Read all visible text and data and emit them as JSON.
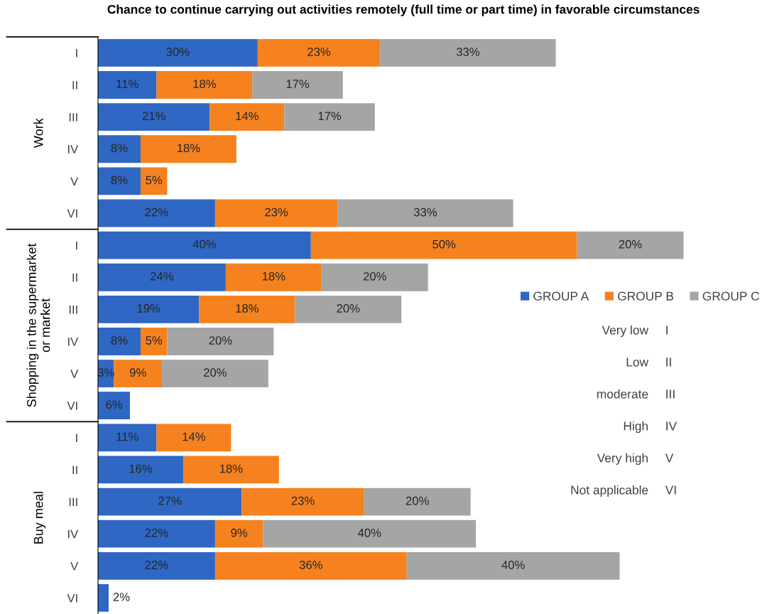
{
  "chart_data": {
    "type": "bar",
    "orientation": "horizontal",
    "stacked": true,
    "legend": "right",
    "grid": false,
    "title": "Chance to continue carrying out activities remotely (full time or part time) in favorable circumstances",
    "categories": [
      "I",
      "II",
      "III",
      "IV",
      "V",
      "VI",
      "I",
      "II",
      "III",
      "IV",
      "V",
      "VI",
      "I",
      "II",
      "III",
      "IV",
      "V",
      "VI"
    ],
    "series": [
      {
        "name": "GROUP A",
        "color": "#2e67c4",
        "values": [
          30,
          11,
          21,
          8,
          8,
          22,
          40,
          24,
          19,
          8,
          3,
          6,
          11,
          16,
          27,
          22,
          22,
          2
        ],
        "value_labels": [
          "30%",
          "11%",
          "21%",
          "8%",
          "8%",
          "22%",
          "40%",
          "24%",
          "19%",
          "8%",
          "3%",
          "6%",
          "11%",
          "16%",
          "27%",
          "22%",
          "22%",
          "2%"
        ]
      },
      {
        "name": "GROUP B",
        "color": "#f5821f",
        "values": [
          23,
          18,
          14,
          18,
          5,
          23,
          50,
          18,
          18,
          5,
          9,
          null,
          14,
          18,
          23,
          9,
          36,
          null
        ],
        "value_labels": [
          "23%",
          "18%",
          "14%",
          "18%",
          "5%",
          "23%",
          "50%",
          "18%",
          "18%",
          "5%",
          "9%",
          null,
          "14%",
          "18%",
          "23%",
          "9%",
          "36%",
          null
        ]
      },
      {
        "name": "GROUP C",
        "color": "#a5a5a5",
        "values": [
          33,
          17,
          17,
          null,
          null,
          33,
          20,
          20,
          20,
          20,
          20,
          null,
          null,
          null,
          20,
          40,
          40,
          null
        ],
        "value_labels": [
          "33%",
          "17%",
          "17%",
          null,
          null,
          "33%",
          "20%",
          "20%",
          "20%",
          "20%",
          "20%",
          null,
          null,
          null,
          "20%",
          "40%",
          "40%",
          null
        ]
      }
    ],
    "annotations": [
      "Work",
      "Shopping in the supermarket\nor market",
      "Buy meal",
      "Very low",
      "I",
      "Low",
      "II",
      "moderate",
      "III",
      "High",
      "IV",
      "Very high",
      "V",
      "Not applicable",
      "VI"
    ]
  }
}
